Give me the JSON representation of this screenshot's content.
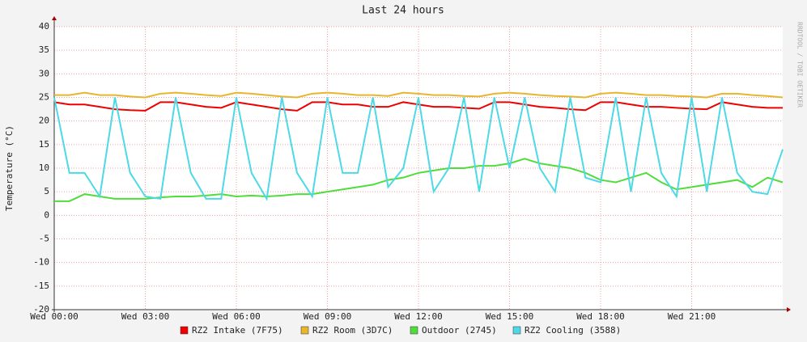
{
  "chart_data": {
    "type": "line",
    "title": "Last 24 hours",
    "y_label": "Temperature (°C)",
    "watermark": "RRDTOOL / TOBI OETIKER",
    "xlim": [
      0,
      24
    ],
    "ylim": [
      -20,
      40
    ],
    "grid": true,
    "xticks": [
      {
        "value": 0,
        "label": "Wed 00:00"
      },
      {
        "value": 3,
        "label": "Wed 03:00"
      },
      {
        "value": 6,
        "label": "Wed 06:00"
      },
      {
        "value": 9,
        "label": "Wed 09:00"
      },
      {
        "value": 12,
        "label": "Wed 12:00"
      },
      {
        "value": 15,
        "label": "Wed 15:00"
      },
      {
        "value": 18,
        "label": "Wed 18:00"
      },
      {
        "value": 21,
        "label": "Wed 21:00"
      }
    ],
    "yticks": [
      -20,
      -15,
      -10,
      -5,
      0,
      5,
      10,
      15,
      20,
      25,
      30,
      35,
      40
    ],
    "x": [
      0,
      0.5,
      1,
      1.5,
      2,
      2.5,
      3,
      3.5,
      4,
      4.5,
      5,
      5.5,
      6,
      6.5,
      7,
      7.5,
      8,
      8.5,
      9,
      9.5,
      10,
      10.5,
      11,
      11.5,
      12,
      12.5,
      13,
      13.5,
      14,
      14.5,
      15,
      15.5,
      16,
      16.5,
      17,
      17.5,
      18,
      18.5,
      19,
      19.5,
      20,
      20.5,
      21,
      21.5,
      22,
      22.5,
      23,
      23.5,
      24
    ],
    "series": [
      {
        "name": "RZ2 Intake (7F75)",
        "color": "#ee0000",
        "values": [
          24,
          23.5,
          23.5,
          23,
          22.5,
          22.3,
          22.2,
          24,
          24,
          23.5,
          23,
          22.8,
          24,
          23.5,
          23,
          22.5,
          22.2,
          24,
          24,
          23.5,
          23.5,
          23,
          23,
          24,
          23.5,
          23,
          23,
          22.8,
          22.6,
          24,
          24,
          23.5,
          23,
          22.8,
          22.5,
          22.3,
          24,
          24,
          23.5,
          23,
          23,
          22.8,
          22.6,
          22.5,
          24,
          23.5,
          23,
          22.8,
          22.8
        ]
      },
      {
        "name": "RZ2 Room (3D7C)",
        "color": "#e8b52c",
        "values": [
          25.5,
          25.5,
          26,
          25.5,
          25.5,
          25.2,
          25,
          25.8,
          26,
          25.8,
          25.5,
          25.3,
          26,
          25.8,
          25.5,
          25.2,
          25,
          25.8,
          26,
          25.8,
          25.5,
          25.5,
          25.3,
          26,
          25.8,
          25.5,
          25.5,
          25.3,
          25.2,
          25.8,
          26,
          25.8,
          25.5,
          25.3,
          25.2,
          25,
          25.8,
          26,
          25.8,
          25.5,
          25.5,
          25.3,
          25.2,
          25,
          25.8,
          25.8,
          25.5,
          25.3,
          25
        ]
      },
      {
        "name": "Outdoor (2745)",
        "color": "#50dd3c",
        "values": [
          3,
          3,
          4.5,
          4,
          3.5,
          3.5,
          3.5,
          3.8,
          4,
          4,
          4.2,
          4.5,
          4,
          4.2,
          4,
          4.2,
          4.5,
          4.5,
          5,
          5.5,
          6,
          6.5,
          7.5,
          8,
          9,
          9.5,
          10,
          10,
          10.5,
          10.5,
          11,
          12,
          11,
          10.5,
          10,
          9,
          7.5,
          7,
          8,
          9,
          7,
          5.5,
          6,
          6.5,
          7,
          7.5,
          6,
          8,
          7
        ]
      },
      {
        "name": "RZ2 Cooling (3588)",
        "color": "#4dd9e6",
        "values": [
          25,
          9,
          9,
          4,
          25,
          9,
          4,
          3.5,
          25,
          9,
          3.5,
          3.5,
          25,
          9,
          3.5,
          25,
          9,
          4,
          25,
          9,
          9,
          25,
          6,
          10,
          25,
          5,
          10,
          25,
          5,
          25,
          10,
          25,
          10,
          5,
          25,
          8,
          7,
          25,
          5,
          25,
          9,
          4,
          25,
          5,
          25,
          9,
          5,
          4.5,
          14
        ]
      }
    ]
  }
}
